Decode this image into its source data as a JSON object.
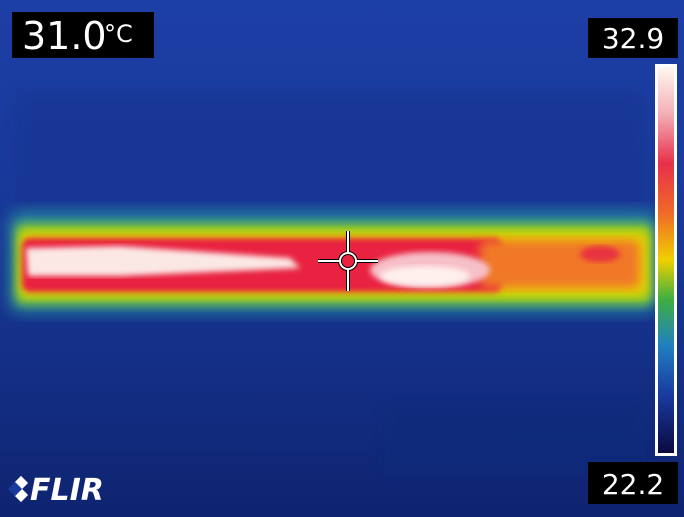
{
  "spot": {
    "value": "31.0",
    "unit": "°C"
  },
  "scale": {
    "max": "32.9",
    "min": "22.2"
  },
  "logo": "FLIR"
}
